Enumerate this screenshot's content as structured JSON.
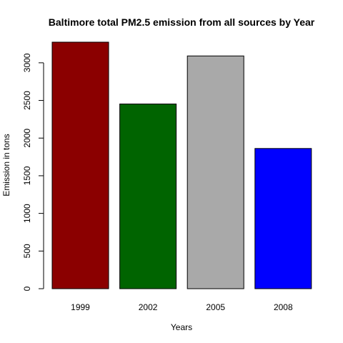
{
  "chart_data": {
    "type": "bar",
    "title": "Baltimore total PM2.5 emission from all sources by Year",
    "xlabel": "Years",
    "ylabel": "Emission in tons",
    "categories": [
      "1999",
      "2002",
      "2005",
      "2008"
    ],
    "values": [
      3274,
      2453,
      3091,
      1862
    ],
    "colors": [
      "#8b0000",
      "#006400",
      "#a9a9a9",
      "#0000ff"
    ],
    "yticks": [
      0,
      500,
      1000,
      1500,
      2000,
      2500,
      3000
    ],
    "ylim": [
      0,
      3274
    ],
    "grid": false,
    "legend": "none"
  }
}
